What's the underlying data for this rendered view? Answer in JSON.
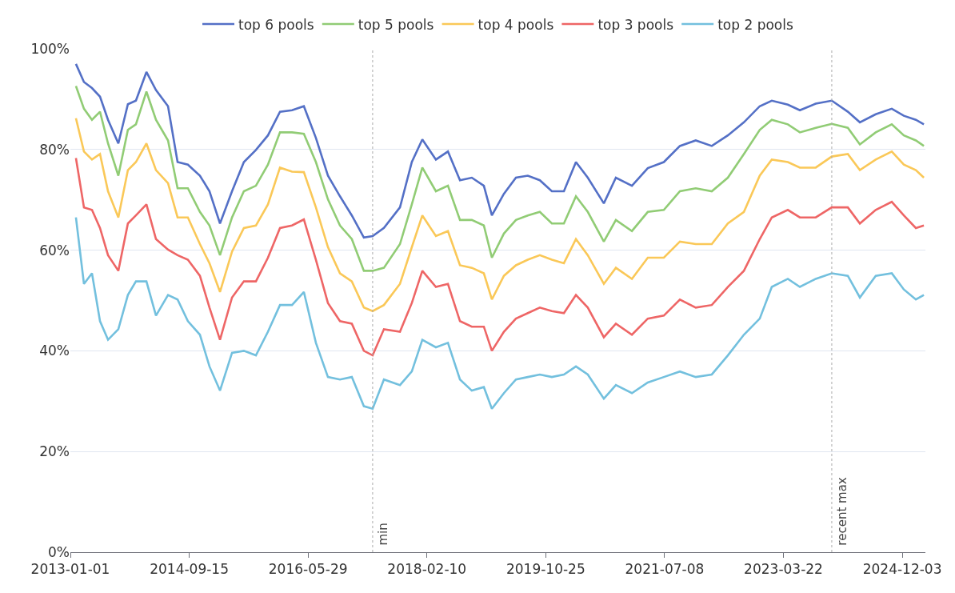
{
  "chart_data": {
    "type": "line",
    "x": [
      "2013-01-30",
      "2013-03-13",
      "2013-04-24",
      "2013-06-05",
      "2013-07-17",
      "2013-09-09",
      "2013-10-29",
      "2013-12-10",
      "2014-02-03",
      "2014-03-25",
      "2014-05-27",
      "2014-07-16",
      "2014-09-08",
      "2014-11-10",
      "2014-12-30",
      "2015-02-23",
      "2015-04-27",
      "2015-06-28",
      "2015-08-30",
      "2015-11-01",
      "2016-01-03",
      "2016-03-06",
      "2016-05-07",
      "2016-07-09",
      "2016-09-10",
      "2016-11-12",
      "2017-01-13",
      "2017-03-17",
      "2017-05-02",
      "2017-06-30",
      "2017-09-22",
      "2017-11-23",
      "2018-01-17",
      "2018-03-29",
      "2018-05-31",
      "2018-08-02",
      "2018-10-03",
      "2018-12-05",
      "2019-01-16",
      "2019-03-20",
      "2019-05-22",
      "2019-07-23",
      "2019-09-24",
      "2019-11-26",
      "2020-01-28",
      "2020-03-31",
      "2020-06-01",
      "2020-08-24",
      "2020-10-26",
      "2021-01-18",
      "2021-04-11",
      "2021-07-04",
      "2021-09-26",
      "2021-12-18",
      "2022-03-12",
      "2022-06-04",
      "2022-08-27",
      "2022-11-18",
      "2023-01-20",
      "2023-04-14",
      "2023-06-16",
      "2023-09-07",
      "2023-11-30",
      "2024-02-22",
      "2024-04-25",
      "2024-07-17",
      "2024-10-09",
      "2024-12-11",
      "2025-02-12",
      "2025-03-26"
    ],
    "series": [
      {
        "name": "top 6 pools",
        "color": "#5470c6",
        "values": [
          97,
          93.4,
          92.2,
          90.5,
          85.9,
          81.2,
          89,
          89.7,
          95.4,
          91.8,
          88.6,
          77.5,
          77,
          74.8,
          71.7,
          65.3,
          71.7,
          77.5,
          79.9,
          82.8,
          87.5,
          87.8,
          88.6,
          82.3,
          74.8,
          70.7,
          66.9,
          62.5,
          62.8,
          64.4,
          68.5,
          77.5,
          82,
          78,
          79.6,
          73.9,
          74.4,
          72.8,
          66.9,
          71.2,
          74.4,
          74.8,
          73.9,
          71.7,
          71.7,
          77.5,
          74.4,
          69.3,
          74.4,
          72.8,
          76.3,
          77.5,
          80.7,
          81.8,
          80.7,
          82.8,
          85.4,
          88.6,
          89.7,
          88.9,
          87.8,
          89.1,
          89.7,
          87.5,
          85.4,
          87,
          88.1,
          86.7,
          85.9,
          85
        ]
      },
      {
        "name": "top 5 pools",
        "color": "#91cc75",
        "values": [
          92.6,
          88.1,
          85.9,
          87.5,
          81.2,
          74.8,
          83.9,
          85,
          91.5,
          85.9,
          81.8,
          72.3,
          72.3,
          67.6,
          64.9,
          59,
          66.5,
          71.7,
          72.8,
          77,
          83.4,
          83.4,
          83.1,
          77.5,
          70.1,
          64.9,
          62.2,
          55.9,
          55.9,
          56.5,
          61.2,
          69.1,
          76.4,
          71.7,
          72.8,
          66,
          66,
          64.9,
          58.5,
          63.3,
          66,
          66.9,
          67.6,
          65.3,
          65.3,
          70.7,
          67.6,
          61.7,
          66,
          63.8,
          67.6,
          68,
          71.7,
          72.3,
          71.7,
          74.4,
          79.1,
          83.9,
          85.9,
          85,
          83.4,
          84.3,
          85.1,
          84.3,
          81,
          83.4,
          85,
          82.8,
          81.8,
          80.7
        ]
      },
      {
        "name": "top 4 pools",
        "color": "#fac858",
        "values": [
          86.2,
          79.6,
          78,
          79.1,
          71.7,
          66.5,
          75.9,
          77.5,
          81.2,
          75.9,
          73.3,
          66.5,
          66.5,
          61.2,
          57.4,
          51.7,
          59.7,
          64.4,
          64.9,
          69.1,
          76.4,
          75.6,
          75.5,
          68.5,
          60.6,
          55.4,
          53.8,
          48.6,
          47.9,
          49.1,
          53.3,
          60.6,
          66.9,
          62.8,
          63.8,
          57,
          56.5,
          55.4,
          50.2,
          54.9,
          57,
          58.1,
          59,
          58.1,
          57.4,
          62.2,
          59,
          53.3,
          56.5,
          54.3,
          58.5,
          58.5,
          61.7,
          61.2,
          61.2,
          65.3,
          67.6,
          74.8,
          78,
          77.5,
          76.4,
          76.4,
          78.6,
          79.1,
          75.9,
          78,
          79.6,
          77,
          75.9,
          74.4
        ]
      },
      {
        "name": "top 3 pools",
        "color": "#ee6666",
        "values": [
          78.3,
          68.5,
          68,
          64.4,
          59,
          55.9,
          65.3,
          66.9,
          69.1,
          62.2,
          60.1,
          59,
          58.1,
          54.9,
          48.6,
          42.2,
          50.6,
          53.8,
          53.8,
          58.5,
          64.4,
          64.9,
          66.1,
          58.1,
          49.5,
          45.9,
          45.4,
          40,
          39.1,
          44.3,
          43.8,
          49.5,
          55.9,
          52.7,
          53.3,
          45.9,
          44.8,
          44.8,
          40,
          43.8,
          46.4,
          47.5,
          48.6,
          47.9,
          47.5,
          51.1,
          48.6,
          42.7,
          45.4,
          43.2,
          46.4,
          47,
          50.2,
          48.6,
          49.1,
          52.7,
          55.9,
          62.2,
          66.5,
          68,
          66.5,
          66.5,
          68.5,
          68.5,
          65.3,
          68,
          69.6,
          66.9,
          64.4,
          64.9
        ]
      },
      {
        "name": "top 2 pools",
        "color": "#73c0de",
        "values": [
          66.5,
          53.3,
          55.4,
          45.9,
          42.2,
          44.3,
          51.1,
          53.8,
          53.8,
          47,
          51.1,
          50.2,
          45.9,
          43.2,
          36.9,
          32.1,
          39.6,
          40,
          39.1,
          43.8,
          49.1,
          49.1,
          51.7,
          41.6,
          34.8,
          34.3,
          34.8,
          29,
          28.5,
          34.3,
          33.2,
          35.9,
          42.2,
          40.7,
          41.6,
          34.3,
          32.1,
          32.8,
          28.5,
          31.6,
          34.3,
          34.8,
          35.3,
          34.8,
          35.3,
          36.9,
          35.3,
          30.5,
          33.2,
          31.6,
          33.7,
          34.8,
          35.9,
          34.8,
          35.3,
          39.1,
          43.2,
          46.4,
          52.7,
          54.3,
          52.7,
          54.3,
          55.4,
          54.9,
          50.6,
          54.9,
          55.4,
          52.2,
          50.2,
          51.1
        ]
      }
    ],
    "xlim": [
      "2013-01-01",
      "2025-04-03"
    ],
    "xticks": [
      "2013-01-01",
      "2014-09-15",
      "2016-05-29",
      "2018-02-10",
      "2019-10-25",
      "2021-07-08",
      "2023-03-22",
      "2024-12-03"
    ],
    "ylim": [
      0,
      100
    ],
    "yticks": [
      {
        "value": 0,
        "label": "0%"
      },
      {
        "value": 20,
        "label": "20%"
      },
      {
        "value": 40,
        "label": "40%"
      },
      {
        "value": 60,
        "label": "60%"
      },
      {
        "value": 80,
        "label": "80%"
      },
      {
        "value": 100,
        "label": "100%"
      }
    ],
    "ref_lines": [
      {
        "axis": "x",
        "value": "2017-05-02",
        "label": "min",
        "color": "#aaaaaa",
        "line_style": "dotted"
      },
      {
        "axis": "x",
        "value": "2023-11-30",
        "label": "recent max",
        "color": "#aaaaaa",
        "line_style": "dotted"
      }
    ],
    "grid": "y",
    "legend": "top",
    "line_style": "solid"
  }
}
